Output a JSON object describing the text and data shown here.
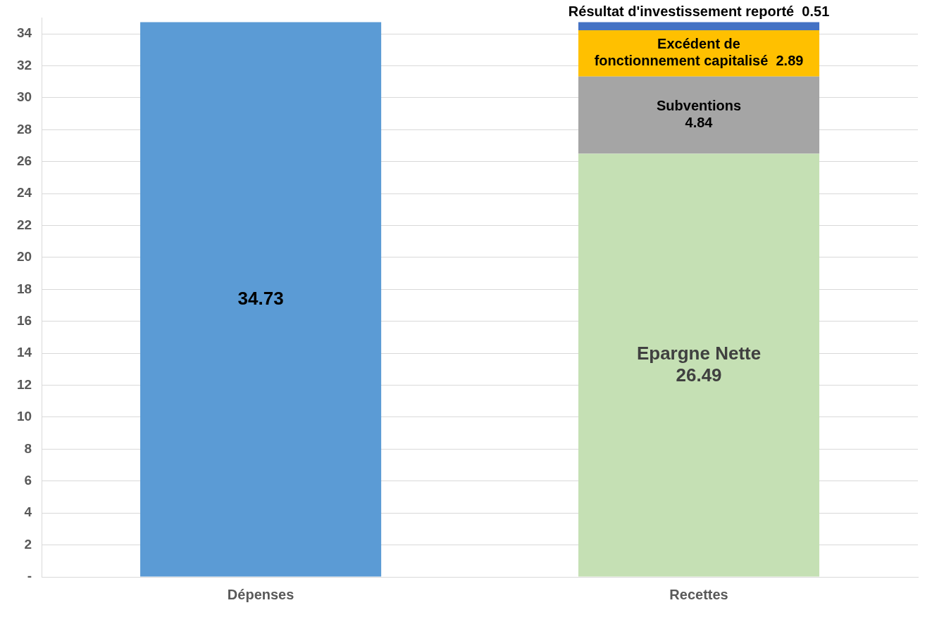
{
  "chart_data": {
    "type": "bar",
    "stacked": true,
    "categories": [
      "Dépenses",
      "Recettes"
    ],
    "series": [
      {
        "color": "#5b9bd5",
        "values": [
          34.73,
          null
        ]
      },
      {
        "name": "Epargne Nette",
        "color": "#c5e0b4",
        "values": [
          null,
          26.49
        ]
      },
      {
        "name": "Subventions",
        "color": "#a5a5a5",
        "values": [
          null,
          4.84
        ]
      },
      {
        "name": "Excédent de fonctionnement capitalisé",
        "color": "#ffc000",
        "values": [
          null,
          2.89
        ]
      },
      {
        "name": "Résultat d'investissement reporté",
        "color": "#4472c4",
        "values": [
          null,
          0.51
        ]
      }
    ],
    "ylim": [
      0,
      35
    ],
    "yticks": [
      {
        "value": 0,
        "label": "-"
      },
      2,
      4,
      6,
      8,
      10,
      12,
      14,
      16,
      18,
      20,
      22,
      24,
      26,
      28,
      30,
      32,
      34
    ],
    "grid": "y",
    "legend": false,
    "data_labels": true
  }
}
